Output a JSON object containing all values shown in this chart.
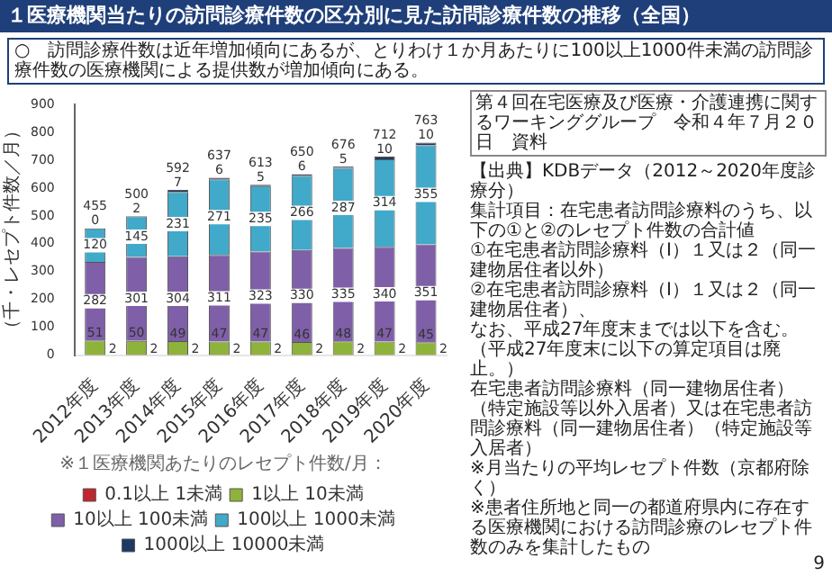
{
  "chart_data": {
    "type": "bar",
    "title": "１医療機関当たりの訪問診療件数の区分別に見た訪問診療件数の推移（全国）",
    "ylabel": "（千・レセプト件数／月）",
    "legend_title": "※１医療機関あたりのレセプト件数/月：",
    "categories": [
      "2012年度",
      "2013年度",
      "2014年度",
      "2015年度",
      "2016年度",
      "2017年度",
      "2018年度",
      "2019年度",
      "2020年度"
    ],
    "series": [
      {
        "name": "0.1以上 1未満",
        "color": "#c0262d",
        "values": [
          2,
          2,
          2,
          2,
          2,
          2,
          2,
          2,
          2
        ]
      },
      {
        "name": "1以上 10未満",
        "color": "#8db33a",
        "values": [
          51,
          50,
          49,
          47,
          47,
          46,
          48,
          47,
          45
        ]
      },
      {
        "name": "10以上 100未満",
        "color": "#7f5fa8",
        "values": [
          282,
          301,
          304,
          311,
          323,
          330,
          335,
          340,
          351
        ]
      },
      {
        "name": "100以上 1000未満",
        "color": "#41a9c9",
        "values": [
          120,
          145,
          231,
          271,
          235,
          266,
          287,
          314,
          355
        ]
      },
      {
        "name": "1000以上 10000未満",
        "color": "#1f3864",
        "values": [
          0,
          2,
          7,
          6,
          5,
          6,
          5,
          10,
          10
        ]
      }
    ],
    "totals": [
      "455",
      "500",
      "592",
      "637",
      "613",
      "650",
      "676",
      "712",
      "763"
    ],
    "stacked": true,
    "data_labels": true,
    "legend": "bottom",
    "ylim": [
      0,
      900
    ],
    "yticks": [
      0,
      100,
      200,
      300,
      400,
      500,
      600,
      700,
      800,
      900
    ],
    "annotations": [
      "○　訪問診療件数は近年増加傾向にあるが、とりわけ１か月あたりに100以上1000件未満の訪問診療件数の医療機関による提供数が増加傾向にある。",
      "第４回在宅医療及び医療・介護連携に関するワーキンググループ　令和４年７月２０日　資料",
      "【出典】KDBデータ（2012～2020年度診療分）",
      "集計項目：在宅患者訪問診療料のうち、以下の①と②のレセプト件数の合計値",
      "①在宅患者訪問診療料（Ⅰ）１又は２（同一建物居住者以外）",
      "②在宅患者訪問診療料（Ⅰ）１又は２（同一建物居住者）、",
      "なお、平成27年度末までは以下を含む。（平成27年度末に以下の算定項目は廃止。）",
      "在宅患者訪問診療料（同一建物居住者）（特定施設等以外入居者）又は在宅患者訪問診療料（同一建物居住者）（特定施設等入居者）",
      "※月当たりの平均レセプト件数（京都府除く）",
      "※患者住所地と同一の都道府県内に存在する医療機関における訪問診療のレセプト件数のみを集計したもの",
      "9"
    ]
  }
}
